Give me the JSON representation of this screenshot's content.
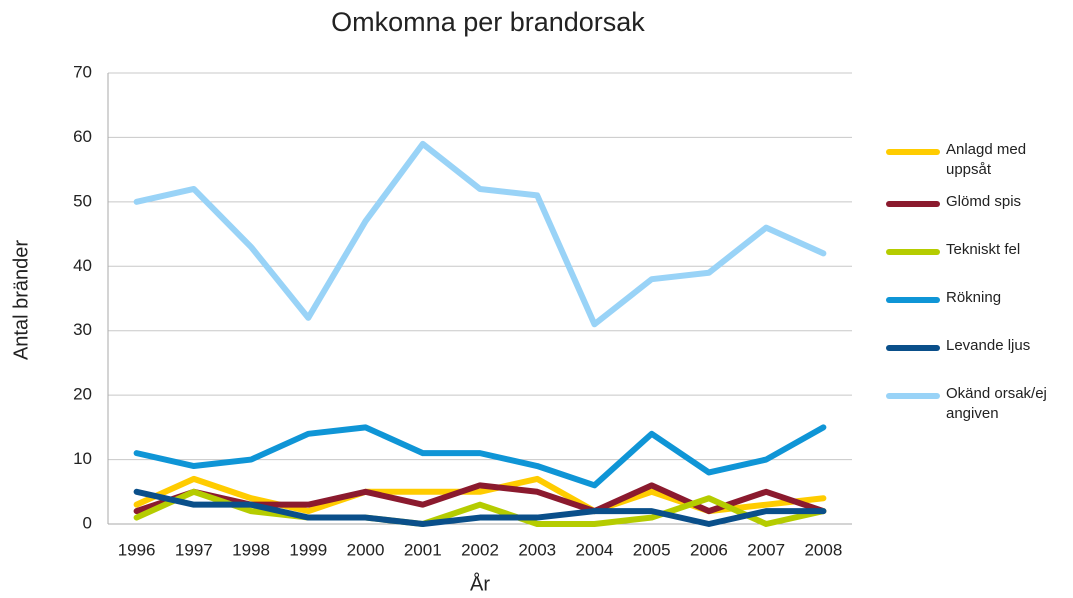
{
  "chart_data": {
    "type": "line",
    "title": "Omkomna per brandorsak",
    "x_label": "År",
    "y_label": "Antal bränder",
    "categories": [
      "1996",
      "1997",
      "1998",
      "1999",
      "2000",
      "2001",
      "2002",
      "2003",
      "2004",
      "2005",
      "2006",
      "2007",
      "2008"
    ],
    "series": [
      {
        "name": "Anlagd med uppsåt",
        "color": "#ffcc00",
        "values": [
          3,
          7,
          4,
          2,
          5,
          5,
          5,
          7,
          2,
          5,
          2,
          3,
          4
        ]
      },
      {
        "name": "Glömd spis",
        "color": "#8b1a2e",
        "values": [
          2,
          5,
          3,
          3,
          5,
          3,
          6,
          5,
          2,
          6,
          2,
          5,
          2
        ]
      },
      {
        "name": "Tekniskt fel",
        "color": "#b5cc00",
        "values": [
          1,
          5,
          2,
          1,
          1,
          0,
          3,
          0,
          0,
          1,
          4,
          0,
          2
        ]
      },
      {
        "name": "Rökning",
        "color": "#0f95d6",
        "values": [
          11,
          9,
          10,
          14,
          15,
          11,
          11,
          9,
          6,
          14,
          8,
          10,
          15
        ]
      },
      {
        "name": "Levande ljus",
        "color": "#0a4f8a",
        "values": [
          5,
          3,
          3,
          1,
          1,
          0,
          1,
          1,
          2,
          2,
          0,
          2,
          2
        ]
      },
      {
        "name": "Okänd orsak/ej angiven",
        "color": "#99d3f7",
        "values": [
          50,
          52,
          43,
          32,
          47,
          59,
          52,
          51,
          31,
          38,
          39,
          46,
          42
        ]
      }
    ],
    "ylim": [
      0,
      70
    ],
    "yticks": [
      0,
      10,
      20,
      30,
      40,
      50,
      60,
      70
    ],
    "grid": true
  }
}
